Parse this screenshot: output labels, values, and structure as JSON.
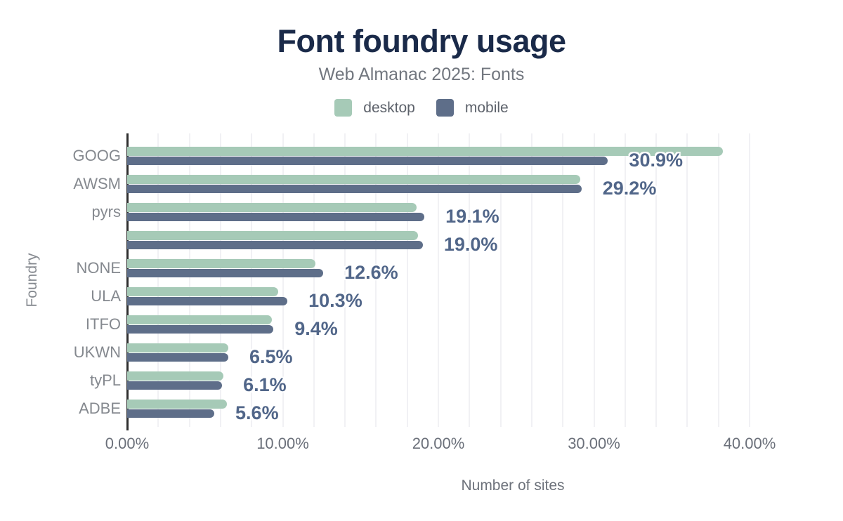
{
  "title": "Font foundry usage",
  "subtitle": "Web Almanac 2025: Fonts",
  "legend": {
    "items": [
      {
        "label": "desktop",
        "color": "#a6cab7"
      },
      {
        "label": "mobile",
        "color": "#5e6e89"
      }
    ]
  },
  "x_axis": {
    "title": "Number of sites",
    "tick_labels": [
      "0.00%",
      "10.00%",
      "20.00%",
      "30.00%",
      "40.00%"
    ],
    "tick_values": [
      0,
      10,
      20,
      30,
      40
    ]
  },
  "y_axis": {
    "title": "Foundry"
  },
  "chart_data": {
    "type": "bar",
    "orientation": "horizontal",
    "title": "Font foundry usage",
    "subtitle": "Web Almanac 2025: Fonts",
    "xlabel": "Number of sites",
    "ylabel": "Foundry",
    "xlim": [
      0,
      40
    ],
    "grid": true,
    "gridline_step_pct": 2,
    "legend_position": "top",
    "categories": [
      "GOOG",
      "AWSM",
      "pyrs",
      "",
      "NONE",
      "ULA",
      "ITFO",
      "UKWN",
      "tyPL",
      "ADBE"
    ],
    "series": [
      {
        "name": "desktop",
        "color": "#a6cab7",
        "values": [
          38.3,
          29.1,
          18.6,
          18.7,
          12.1,
          9.7,
          9.3,
          6.5,
          6.2,
          6.4
        ]
      },
      {
        "name": "mobile",
        "color": "#5e6e89",
        "values": [
          30.9,
          29.2,
          19.1,
          19.0,
          12.6,
          10.3,
          9.4,
          6.5,
          6.1,
          5.6
        ]
      }
    ],
    "data_labels": [
      "30.9%",
      "29.2%",
      "19.1%",
      "19.0%",
      "12.6%",
      "10.3%",
      "9.4%",
      "6.5%",
      "6.1%",
      "5.6%"
    ],
    "data_labels_series": "mobile",
    "data_label_color": "#516689"
  },
  "colors": {
    "title": "#1a2a49",
    "subtitle": "#72777f",
    "axis_line": "#2f2f2f",
    "gridline": "#f1f1f4",
    "tick_text": "#6b707a",
    "category_text": "#85898f",
    "background": "#ffffff"
  }
}
